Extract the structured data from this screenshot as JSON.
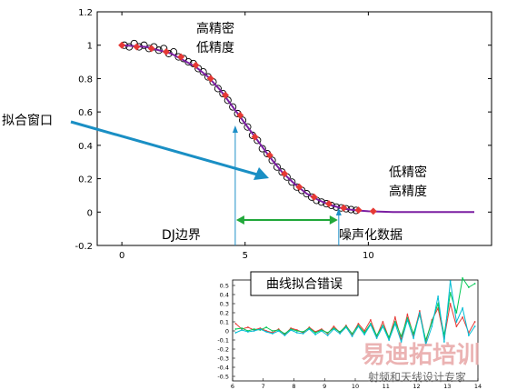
{
  "chart_data": [
    {
      "type": "scatter",
      "xlim": [
        -1,
        15
      ],
      "ylim": [
        -0.2,
        1.2
      ],
      "xticks": [
        "0",
        "5",
        "10"
      ],
      "yticks": [
        "-0.2",
        "0",
        "0.2",
        "0.4",
        "0.6",
        "0.8",
        "1",
        "1.2"
      ],
      "series": [
        {
          "kind": "scatter-circles",
          "color": "#000000",
          "points": [
            [
              0.1,
              1.0
            ],
            [
              0.3,
              0.99
            ],
            [
              0.5,
              1.01
            ],
            [
              0.7,
              0.99
            ],
            [
              0.9,
              1.0
            ],
            [
              1.1,
              0.98
            ],
            [
              1.3,
              0.99
            ],
            [
              1.5,
              0.97
            ],
            [
              1.7,
              0.98
            ],
            [
              1.9,
              0.95
            ],
            [
              2.1,
              0.96
            ],
            [
              2.3,
              0.93
            ],
            [
              2.5,
              0.92
            ],
            [
              2.7,
              0.9
            ],
            [
              2.9,
              0.89
            ],
            [
              3.1,
              0.86
            ],
            [
              3.3,
              0.84
            ],
            [
              3.5,
              0.81
            ],
            [
              3.7,
              0.78
            ],
            [
              3.9,
              0.74
            ],
            [
              4.1,
              0.71
            ],
            [
              4.3,
              0.67
            ],
            [
              4.5,
              0.63
            ],
            [
              4.7,
              0.59
            ],
            [
              4.9,
              0.55
            ],
            [
              5.1,
              0.51
            ],
            [
              5.3,
              0.46
            ],
            [
              5.5,
              0.43
            ],
            [
              5.7,
              0.38
            ],
            [
              5.9,
              0.35
            ],
            [
              6.1,
              0.31
            ],
            [
              6.3,
              0.27
            ],
            [
              6.5,
              0.24
            ],
            [
              6.7,
              0.21
            ],
            [
              6.9,
              0.18
            ],
            [
              7.1,
              0.15
            ],
            [
              7.3,
              0.13
            ],
            [
              7.5,
              0.11
            ],
            [
              7.7,
              0.09
            ],
            [
              7.9,
              0.07
            ],
            [
              8.1,
              0.06
            ],
            [
              8.3,
              0.05
            ],
            [
              8.5,
              0.04
            ],
            [
              8.7,
              0.03
            ],
            [
              8.9,
              0.025
            ],
            [
              9.1,
              0.02
            ],
            [
              9.3,
              0.015
            ],
            [
              9.5,
              0.01
            ]
          ]
        },
        {
          "kind": "line",
          "color": "#7b1fa2",
          "points": [
            [
              0,
              1.0
            ],
            [
              1,
              0.99
            ],
            [
              2,
              0.95
            ],
            [
              3,
              0.87
            ],
            [
              3.5,
              0.81
            ],
            [
              4,
              0.73
            ],
            [
              4.5,
              0.63
            ],
            [
              5,
              0.53
            ],
            [
              5.5,
              0.43
            ],
            [
              6,
              0.33
            ],
            [
              6.5,
              0.24
            ],
            [
              7,
              0.17
            ],
            [
              7.5,
              0.11
            ],
            [
              8,
              0.07
            ],
            [
              8.5,
              0.04
            ],
            [
              9,
              0.02
            ],
            [
              9.5,
              0.01
            ],
            [
              10,
              0.005
            ],
            [
              11,
              0.0
            ],
            [
              12,
              0.0
            ],
            [
              13,
              0.0
            ],
            [
              14.3,
              0.0
            ]
          ]
        },
        {
          "kind": "scatter-diamonds",
          "color": "#e53935",
          "points": [
            [
              0,
              1.0
            ],
            [
              0.6,
              0.99
            ],
            [
              1.2,
              0.98
            ],
            [
              1.8,
              0.96
            ],
            [
              2.4,
              0.93
            ],
            [
              3.0,
              0.88
            ],
            [
              3.6,
              0.8
            ],
            [
              4.2,
              0.7
            ],
            [
              4.8,
              0.58
            ],
            [
              5.4,
              0.45
            ],
            [
              6.0,
              0.34
            ],
            [
              6.6,
              0.23
            ],
            [
              7.2,
              0.15
            ],
            [
              7.8,
              0.09
            ],
            [
              8.4,
              0.05
            ],
            [
              9.0,
              0.025
            ],
            [
              9.6,
              0.012
            ],
            [
              10.2,
              0.005
            ]
          ]
        }
      ],
      "annotations": {
        "top_high_density": "高精密",
        "top_low_precision": "低精度",
        "left_window": "拟合窗口",
        "right_low_density": "低精密",
        "right_high_precision": "高精度",
        "dj_boundary": "DJ边界",
        "noisy_data": "噪声化数据"
      },
      "markers": {
        "dj_boundary_x": 4.6,
        "noise_start_x": 8.8
      }
    },
    {
      "type": "line",
      "title": "曲线拟合错误",
      "xlim": [
        6,
        14
      ],
      "ylim": [
        -0.5,
        0.5
      ],
      "xticks": [
        "6",
        "7",
        "8",
        "9",
        "10",
        "11",
        "12",
        "13",
        "14"
      ],
      "yticks": [
        "0.5",
        "0.4",
        "0.3",
        "0.2",
        "0.1",
        "0",
        "-0.1",
        "-0.2",
        "-0.3",
        "-0.4",
        "-0.5"
      ],
      "series": [
        {
          "color": "#e53935",
          "x": [
            6.1,
            6.3,
            6.5,
            6.7,
            6.9,
            7.1,
            7.3,
            7.5,
            7.7,
            7.9,
            8.1,
            8.3,
            8.5,
            8.7,
            8.9,
            9.1,
            9.3,
            9.5,
            9.7,
            9.9,
            10.1,
            10.3,
            10.5,
            10.7,
            10.9,
            11.1,
            11.3,
            11.5,
            11.7,
            11.9,
            12.1,
            12.3,
            12.5,
            12.7,
            12.9,
            13.1,
            13.3,
            13.5,
            13.7,
            13.9
          ],
          "y": [
            0.08,
            0.02,
            0.04,
            0.01,
            0.03,
            0.0,
            -0.02,
            0.02,
            -0.04,
            0.03,
            0.01,
            -0.02,
            0.04,
            -0.01,
            0.02,
            -0.03,
            0.05,
            -0.02,
            0.06,
            -0.04,
            0.08,
            0.0,
            0.12,
            -0.06,
            0.1,
            -0.08,
            0.15,
            -0.1,
            0.18,
            -0.05,
            0.22,
            -0.12,
            0.12,
            0.25,
            -0.08,
            0.3,
            0.05,
            0.15,
            -0.02,
            0.1
          ]
        },
        {
          "color": "#00c853",
          "x": [
            6.1,
            6.3,
            6.5,
            6.7,
            6.9,
            7.1,
            7.3,
            7.5,
            7.7,
            7.9,
            8.1,
            8.3,
            8.5,
            8.7,
            8.9,
            9.1,
            9.3,
            9.5,
            9.7,
            9.9,
            10.1,
            10.3,
            10.5,
            10.7,
            10.9,
            11.1,
            11.3,
            11.5,
            11.7,
            11.9,
            12.1,
            12.3,
            12.5,
            12.7,
            12.9,
            13.1,
            13.3,
            13.5,
            13.7,
            13.9
          ],
          "y": [
            0.02,
            0.03,
            0.0,
            0.02,
            0.01,
            0.04,
            0.0,
            0.01,
            -0.03,
            0.02,
            0.0,
            -0.01,
            0.03,
            -0.02,
            0.01,
            -0.02,
            0.03,
            -0.01,
            0.05,
            -0.03,
            0.06,
            -0.02,
            0.08,
            -0.05,
            0.06,
            -0.07,
            0.1,
            -0.06,
            0.14,
            -0.03,
            0.18,
            -0.1,
            0.1,
            0.3,
            -0.05,
            0.42,
            0.2,
            0.58,
            0.48,
            0.52
          ]
        },
        {
          "color": "#00bcd4",
          "x": [
            6.1,
            6.3,
            6.5,
            6.7,
            6.9,
            7.1,
            7.3,
            7.5,
            7.7,
            7.9,
            8.1,
            8.3,
            8.5,
            8.7,
            8.9,
            9.1,
            9.3,
            9.5,
            9.7,
            9.9,
            10.1,
            10.3,
            10.5,
            10.7,
            10.9,
            11.1,
            11.3,
            11.5,
            11.7,
            11.9,
            12.1,
            12.3,
            12.5,
            12.7,
            12.9,
            13.1,
            13.3,
            13.5,
            13.7,
            13.9
          ],
          "y": [
            -0.02,
            0.01,
            -0.01,
            0.0,
            0.02,
            -0.01,
            -0.03,
            0.0,
            -0.05,
            0.01,
            -0.02,
            -0.03,
            0.02,
            -0.04,
            0.0,
            -0.05,
            0.02,
            -0.03,
            0.04,
            -0.06,
            0.05,
            -0.04,
            0.07,
            -0.08,
            0.05,
            -0.1,
            0.08,
            -0.12,
            0.12,
            -0.08,
            0.2,
            -0.15,
            0.05,
            0.38,
            -0.12,
            0.55,
            0.1,
            0.25,
            -0.05,
            0.05
          ]
        }
      ]
    }
  ],
  "watermark": {
    "brand": "易迪拓培训",
    "slogan": "射频和天线设计专家"
  }
}
